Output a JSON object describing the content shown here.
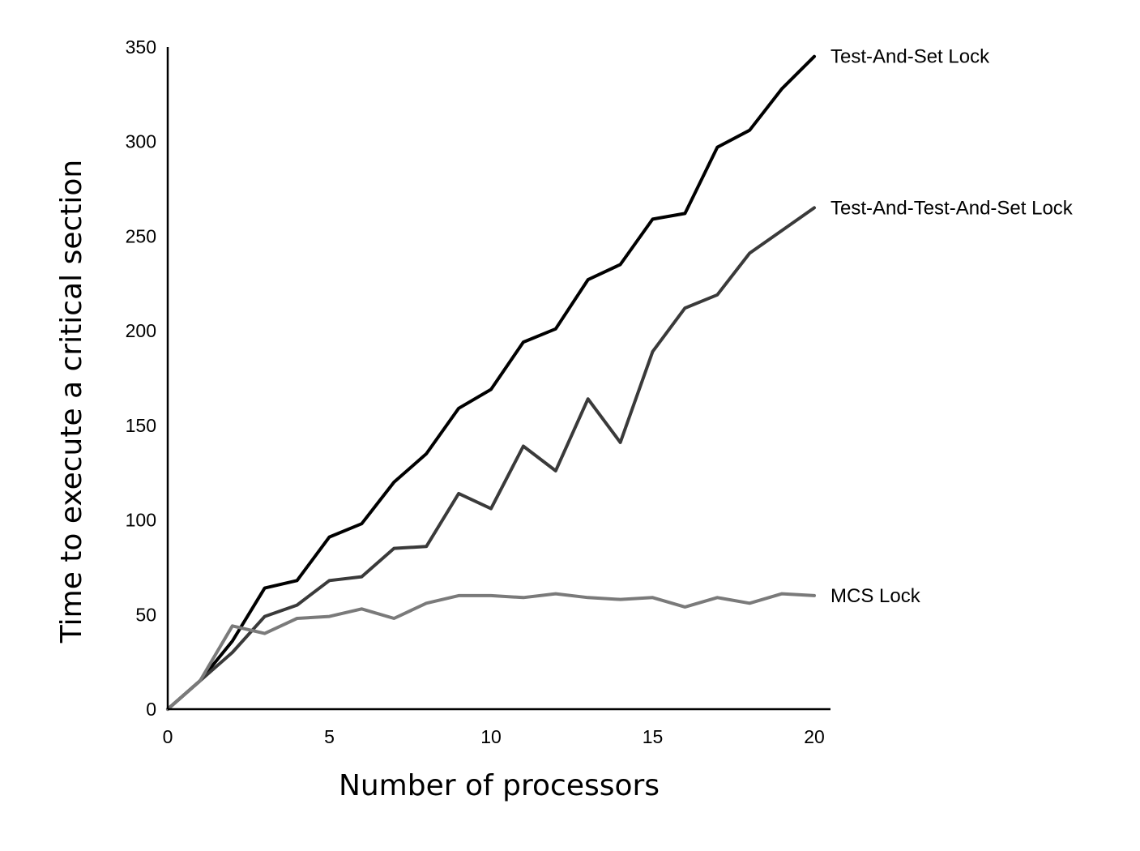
{
  "chart_data": {
    "type": "line",
    "title": "",
    "xlabel": "Number of processors",
    "ylabel": "Time to execute a critical section",
    "xlim": [
      0,
      20
    ],
    "ylim": [
      0,
      350
    ],
    "xticks": [
      0,
      5,
      10,
      15,
      20
    ],
    "yticks": [
      0,
      50,
      100,
      150,
      200,
      250,
      300,
      350
    ],
    "grid": false,
    "legend": "labels at line ends (right)",
    "series": [
      {
        "name": "Test-And-Set Lock",
        "color": "#000000",
        "x": [
          0,
          1,
          2,
          3,
          4,
          5,
          6,
          7,
          8,
          9,
          10,
          11,
          12,
          13,
          14,
          15,
          16,
          17,
          18,
          19,
          20
        ],
        "y": [
          0,
          15,
          36,
          64,
          68,
          91,
          98,
          120,
          135,
          159,
          169,
          194,
          201,
          227,
          235,
          259,
          262,
          297,
          306,
          328,
          345
        ]
      },
      {
        "name": "Test-And-Test-And-Set Lock",
        "color": "#3a3a3a",
        "x": [
          0,
          1,
          2,
          3,
          4,
          5,
          6,
          7,
          8,
          9,
          10,
          11,
          12,
          13,
          14,
          15,
          16,
          17,
          18,
          19,
          20
        ],
        "y": [
          0,
          15,
          30,
          49,
          55,
          68,
          70,
          85,
          86,
          114,
          106,
          139,
          126,
          164,
          141,
          189,
          212,
          219,
          241,
          253,
          265
        ]
      },
      {
        "name": "MCS Lock",
        "color": "#7a7a7a",
        "x": [
          0,
          1,
          2,
          3,
          4,
          5,
          6,
          7,
          8,
          9,
          10,
          11,
          12,
          13,
          14,
          15,
          16,
          17,
          18,
          19,
          20
        ],
        "y": [
          0,
          15,
          44,
          40,
          48,
          49,
          53,
          48,
          56,
          60,
          60,
          59,
          61,
          59,
          58,
          59,
          54,
          59,
          56,
          61,
          60
        ]
      }
    ]
  }
}
